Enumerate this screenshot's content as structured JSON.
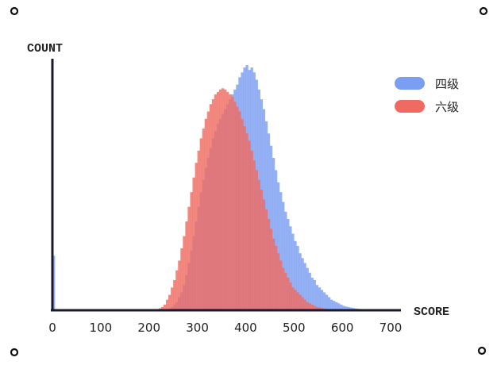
{
  "chart_data": {
    "type": "histogram",
    "xlabel": "SCORE",
    "ylabel": "COUNT",
    "xlim": [
      0,
      700
    ],
    "xticks": [
      0,
      100,
      200,
      300,
      400,
      500,
      600,
      700
    ],
    "ylim": [
      0,
      1
    ],
    "grid": false,
    "legend_position": "top-right",
    "bin_width": 5,
    "series": [
      {
        "name": "四级",
        "color": "#7a9ef1",
        "opacity": 0.8,
        "bins": [
          {
            "x": 0,
            "y": 0.22
          },
          {
            "x": 240,
            "y": 0.005
          },
          {
            "x": 245,
            "y": 0.01
          },
          {
            "x": 250,
            "y": 0.02
          },
          {
            "x": 255,
            "y": 0.03
          },
          {
            "x": 260,
            "y": 0.05
          },
          {
            "x": 265,
            "y": 0.07
          },
          {
            "x": 270,
            "y": 0.1
          },
          {
            "x": 275,
            "y": 0.14
          },
          {
            "x": 280,
            "y": 0.19
          },
          {
            "x": 285,
            "y": 0.24
          },
          {
            "x": 290,
            "y": 0.3
          },
          {
            "x": 295,
            "y": 0.36
          },
          {
            "x": 300,
            "y": 0.42
          },
          {
            "x": 305,
            "y": 0.48
          },
          {
            "x": 310,
            "y": 0.53
          },
          {
            "x": 315,
            "y": 0.58
          },
          {
            "x": 320,
            "y": 0.62
          },
          {
            "x": 325,
            "y": 0.66
          },
          {
            "x": 330,
            "y": 0.7
          },
          {
            "x": 335,
            "y": 0.73
          },
          {
            "x": 340,
            "y": 0.76
          },
          {
            "x": 345,
            "y": 0.78
          },
          {
            "x": 350,
            "y": 0.8
          },
          {
            "x": 355,
            "y": 0.82
          },
          {
            "x": 360,
            "y": 0.84
          },
          {
            "x": 365,
            "y": 0.86
          },
          {
            "x": 370,
            "y": 0.88
          },
          {
            "x": 375,
            "y": 0.9
          },
          {
            "x": 380,
            "y": 0.92
          },
          {
            "x": 385,
            "y": 0.95
          },
          {
            "x": 390,
            "y": 0.97
          },
          {
            "x": 395,
            "y": 0.99
          },
          {
            "x": 400,
            "y": 1.0
          },
          {
            "x": 405,
            "y": 0.98
          },
          {
            "x": 410,
            "y": 0.99
          },
          {
            "x": 415,
            "y": 0.97
          },
          {
            "x": 420,
            "y": 0.94
          },
          {
            "x": 425,
            "y": 0.9
          },
          {
            "x": 430,
            "y": 0.86
          },
          {
            "x": 435,
            "y": 0.82
          },
          {
            "x": 440,
            "y": 0.77
          },
          {
            "x": 445,
            "y": 0.72
          },
          {
            "x": 450,
            "y": 0.67
          },
          {
            "x": 455,
            "y": 0.62
          },
          {
            "x": 460,
            "y": 0.57
          },
          {
            "x": 465,
            "y": 0.52
          },
          {
            "x": 470,
            "y": 0.48
          },
          {
            "x": 475,
            "y": 0.44
          },
          {
            "x": 480,
            "y": 0.4
          },
          {
            "x": 485,
            "y": 0.37
          },
          {
            "x": 490,
            "y": 0.34
          },
          {
            "x": 495,
            "y": 0.31
          },
          {
            "x": 500,
            "y": 0.28
          },
          {
            "x": 505,
            "y": 0.26
          },
          {
            "x": 510,
            "y": 0.23
          },
          {
            "x": 515,
            "y": 0.21
          },
          {
            "x": 520,
            "y": 0.19
          },
          {
            "x": 525,
            "y": 0.17
          },
          {
            "x": 530,
            "y": 0.15
          },
          {
            "x": 535,
            "y": 0.13
          },
          {
            "x": 540,
            "y": 0.12
          },
          {
            "x": 545,
            "y": 0.1
          },
          {
            "x": 550,
            "y": 0.09
          },
          {
            "x": 555,
            "y": 0.08
          },
          {
            "x": 560,
            "y": 0.07
          },
          {
            "x": 565,
            "y": 0.06
          },
          {
            "x": 570,
            "y": 0.05
          },
          {
            "x": 575,
            "y": 0.04
          },
          {
            "x": 580,
            "y": 0.035
          },
          {
            "x": 585,
            "y": 0.03
          },
          {
            "x": 590,
            "y": 0.025
          },
          {
            "x": 595,
            "y": 0.02
          },
          {
            "x": 600,
            "y": 0.015
          },
          {
            "x": 605,
            "y": 0.012
          },
          {
            "x": 610,
            "y": 0.01
          },
          {
            "x": 615,
            "y": 0.008
          },
          {
            "x": 620,
            "y": 0.006
          },
          {
            "x": 625,
            "y": 0.004
          },
          {
            "x": 630,
            "y": 0.003
          },
          {
            "x": 635,
            "y": 0.002
          },
          {
            "x": 640,
            "y": 0.001
          }
        ]
      },
      {
        "name": "六级",
        "color": "#ef6b61",
        "opacity": 0.8,
        "bins": [
          {
            "x": 220,
            "y": 0.005
          },
          {
            "x": 225,
            "y": 0.01
          },
          {
            "x": 230,
            "y": 0.02
          },
          {
            "x": 235,
            "y": 0.04
          },
          {
            "x": 240,
            "y": 0.06
          },
          {
            "x": 245,
            "y": 0.09
          },
          {
            "x": 250,
            "y": 0.12
          },
          {
            "x": 255,
            "y": 0.16
          },
          {
            "x": 260,
            "y": 0.2
          },
          {
            "x": 265,
            "y": 0.25
          },
          {
            "x": 270,
            "y": 0.3
          },
          {
            "x": 275,
            "y": 0.36
          },
          {
            "x": 280,
            "y": 0.42
          },
          {
            "x": 285,
            "y": 0.48
          },
          {
            "x": 290,
            "y": 0.54
          },
          {
            "x": 295,
            "y": 0.6
          },
          {
            "x": 300,
            "y": 0.65
          },
          {
            "x": 305,
            "y": 0.7
          },
          {
            "x": 310,
            "y": 0.74
          },
          {
            "x": 315,
            "y": 0.78
          },
          {
            "x": 320,
            "y": 0.81
          },
          {
            "x": 325,
            "y": 0.84
          },
          {
            "x": 330,
            "y": 0.86
          },
          {
            "x": 335,
            "y": 0.88
          },
          {
            "x": 340,
            "y": 0.89
          },
          {
            "x": 345,
            "y": 0.9
          },
          {
            "x": 350,
            "y": 0.905
          },
          {
            "x": 355,
            "y": 0.9
          },
          {
            "x": 360,
            "y": 0.89
          },
          {
            "x": 365,
            "y": 0.88
          },
          {
            "x": 370,
            "y": 0.87
          },
          {
            "x": 375,
            "y": 0.85
          },
          {
            "x": 380,
            "y": 0.83
          },
          {
            "x": 385,
            "y": 0.81
          },
          {
            "x": 390,
            "y": 0.78
          },
          {
            "x": 395,
            "y": 0.75
          },
          {
            "x": 400,
            "y": 0.72
          },
          {
            "x": 405,
            "y": 0.69
          },
          {
            "x": 410,
            "y": 0.65
          },
          {
            "x": 415,
            "y": 0.61
          },
          {
            "x": 420,
            "y": 0.57
          },
          {
            "x": 425,
            "y": 0.53
          },
          {
            "x": 430,
            "y": 0.49
          },
          {
            "x": 435,
            "y": 0.45
          },
          {
            "x": 440,
            "y": 0.41
          },
          {
            "x": 445,
            "y": 0.37
          },
          {
            "x": 450,
            "y": 0.33
          },
          {
            "x": 455,
            "y": 0.29
          },
          {
            "x": 460,
            "y": 0.26
          },
          {
            "x": 465,
            "y": 0.23
          },
          {
            "x": 470,
            "y": 0.2
          },
          {
            "x": 475,
            "y": 0.17
          },
          {
            "x": 480,
            "y": 0.15
          },
          {
            "x": 485,
            "y": 0.13
          },
          {
            "x": 490,
            "y": 0.11
          },
          {
            "x": 495,
            "y": 0.09
          },
          {
            "x": 500,
            "y": 0.08
          },
          {
            "x": 505,
            "y": 0.07
          },
          {
            "x": 510,
            "y": 0.06
          },
          {
            "x": 515,
            "y": 0.05
          },
          {
            "x": 520,
            "y": 0.04
          },
          {
            "x": 525,
            "y": 0.03
          },
          {
            "x": 530,
            "y": 0.025
          },
          {
            "x": 535,
            "y": 0.02
          },
          {
            "x": 540,
            "y": 0.015
          },
          {
            "x": 545,
            "y": 0.01
          },
          {
            "x": 550,
            "y": 0.008
          },
          {
            "x": 555,
            "y": 0.006
          },
          {
            "x": 560,
            "y": 0.004
          },
          {
            "x": 565,
            "y": 0.003
          },
          {
            "x": 570,
            "y": 0.002
          }
        ]
      }
    ]
  }
}
